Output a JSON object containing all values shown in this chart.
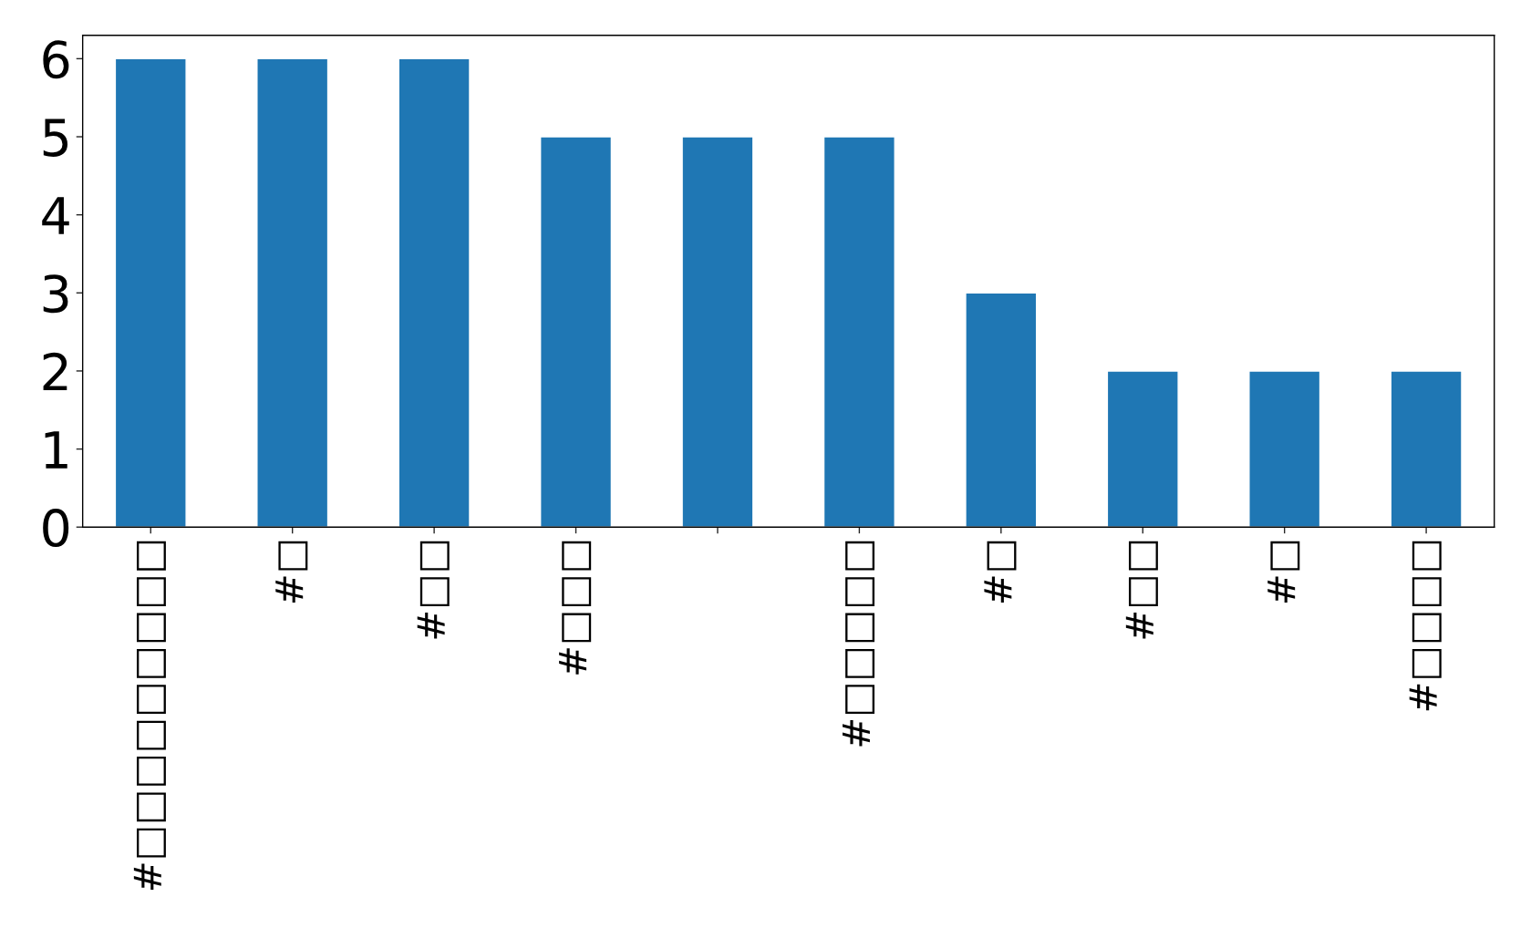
{
  "chart_data": {
    "type": "bar",
    "categories": [
      "#□□□□□□□□□",
      "#□",
      "#□□",
      "#□□□",
      null,
      "#□□□□□",
      "#□",
      "#□□",
      "#□",
      "#□□□□"
    ],
    "values": [
      6,
      6,
      6,
      5,
      5,
      5,
      3,
      2,
      2,
      2
    ],
    "color": "#1f77b4",
    "ylim": [
      0,
      6.3
    ],
    "yticks": [
      0,
      1,
      2,
      3,
      4,
      5,
      6
    ],
    "grid": false,
    "legend": false
  }
}
